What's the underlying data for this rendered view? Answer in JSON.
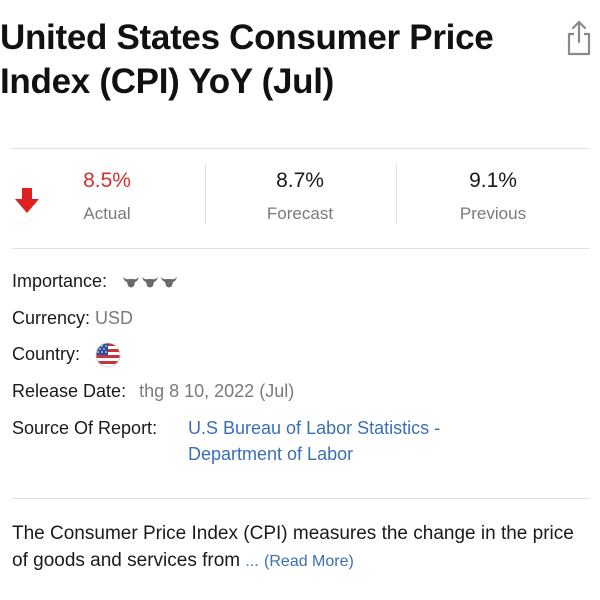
{
  "header": {
    "title": "United States Consumer Price Index (CPI) YoY (Jul)"
  },
  "stats": {
    "trend_icon": "arrow-down-icon",
    "actual": {
      "value": "8.5%",
      "label": "Actual",
      "color": "#d0312d"
    },
    "forecast": {
      "value": "8.7%",
      "label": "Forecast"
    },
    "previous": {
      "value": "9.1%",
      "label": "Previous"
    }
  },
  "details": {
    "importance_label": "Importance:",
    "importance_level": 3,
    "currency_label": "Currency:",
    "currency_value": "USD",
    "country_label": "Country:",
    "country_flag": "us-flag-icon",
    "release_label": "Release Date:",
    "release_value": "thg 8 10, 2022 (Jul)",
    "source_label": "Source Of Report:",
    "source_line1": "U.S Bureau of Labor Statistics -",
    "source_line2": "Department of Labor"
  },
  "description": {
    "text": "The Consumer Price Index (CPI) measures the change in the price of goods and services from",
    "ellipsis": "...",
    "read_more": "(Read More)"
  },
  "colors": {
    "down": "#d0312d",
    "link": "#3a6fb5",
    "muted": "#7a7a7a"
  }
}
